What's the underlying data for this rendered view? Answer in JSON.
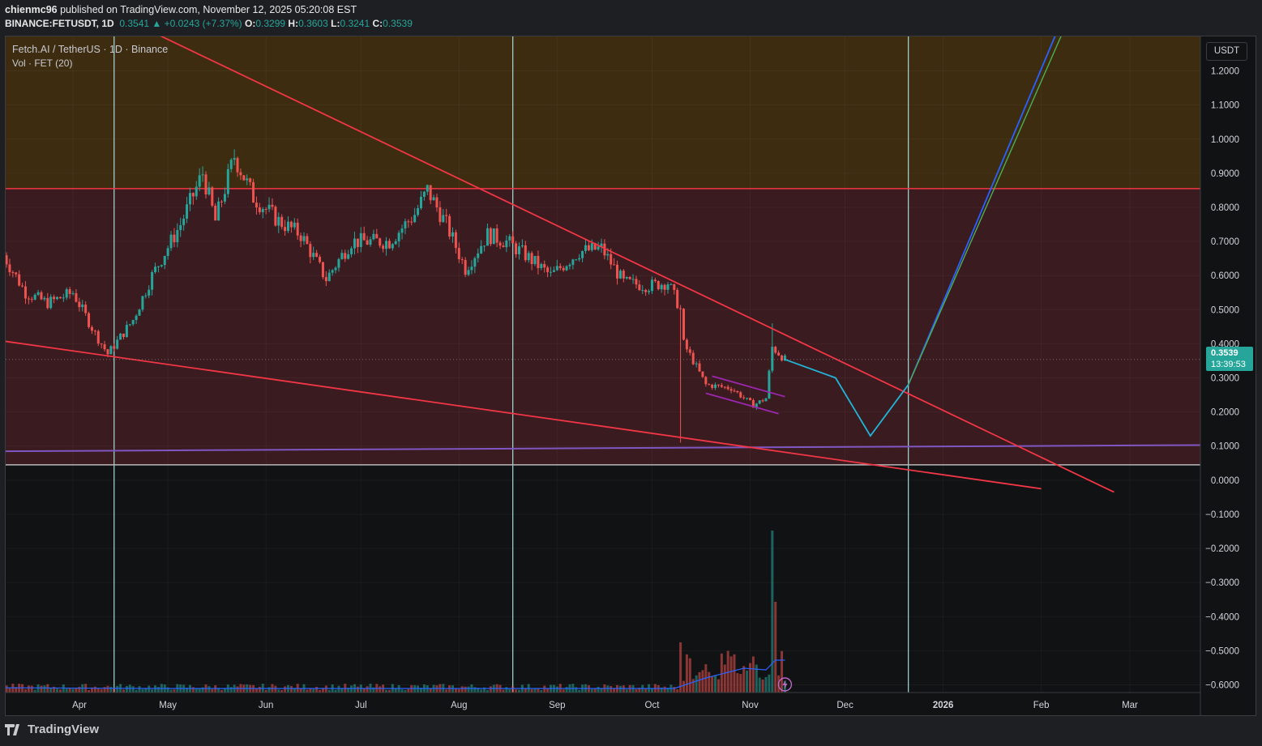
{
  "header": {
    "publisher": "chienmc96",
    "published_text": "published on TradingView.com, November 12, 2025 05:20:08 EST",
    "symbol": "BINANCE:FETUSDT, 1D",
    "last": "0.3541",
    "change": "▲ +0.0243 (+7.37%)",
    "o_label": "O:",
    "o_val": "0.3299",
    "h_label": "H:",
    "h_val": "0.3603",
    "l_label": "L:",
    "l_val": "0.3241",
    "c_label": "C:",
    "c_val": "0.3539"
  },
  "legend": {
    "title": "Fetch.AI / TetherUS · 1D · Binance",
    "volume": "Vol · FET (20)"
  },
  "currency_button": "USDT",
  "price_tag": {
    "price": "0.3539",
    "timer": "13:39:53"
  },
  "footer": {
    "brand": "TradingView"
  },
  "colors": {
    "up": "#26a69a",
    "down": "#ef5350",
    "resistance_zone": "#3d2c10",
    "range_zone": "#3a1b20",
    "trendline": "#f23645",
    "channel": "#9c27b0",
    "projection": "#22b5d8",
    "target_blue": "#2962ff",
    "target_green": "#4caf50"
  },
  "chart_data": {
    "type": "candlestick",
    "x_tick_labels": [
      "Apr",
      "May",
      "Jun",
      "Jul",
      "Aug",
      "Sep",
      "Oct",
      "Nov",
      "Dec",
      "2026",
      "Feb",
      "Mar"
    ],
    "y_tick_labels": [
      "1.2000",
      "1.1000",
      "1.0000",
      "0.9000",
      "0.8000",
      "0.7000",
      "0.6000",
      "0.5000",
      "0.4000",
      "0.3000",
      "0.2000",
      "0.1000",
      "0.0000",
      "−0.1000",
      "−0.2000",
      "−0.3000",
      "−0.4000",
      "−0.5000",
      "−0.6000"
    ],
    "ylim": [
      -0.67,
      1.32
    ],
    "price_path": [
      [
        "2025-03-10",
        0.66
      ],
      [
        "2025-03-17",
        0.55
      ],
      [
        "2025-03-24",
        0.52
      ],
      [
        "2025-04-01",
        0.55
      ],
      [
        "2025-04-08",
        0.43
      ],
      [
        "2025-04-12",
        0.37
      ],
      [
        "2025-04-20",
        0.47
      ],
      [
        "2025-04-26",
        0.6
      ],
      [
        "2025-05-05",
        0.75
      ],
      [
        "2025-05-12",
        0.9
      ],
      [
        "2025-05-16",
        0.76
      ],
      [
        "2025-05-22",
        0.95
      ],
      [
        "2025-05-28",
        0.83
      ],
      [
        "2025-06-05",
        0.76
      ],
      [
        "2025-06-12",
        0.72
      ],
      [
        "2025-06-20",
        0.59
      ],
      [
        "2025-06-28",
        0.7
      ],
      [
        "2025-07-10",
        0.7
      ],
      [
        "2025-07-18",
        0.78
      ],
      [
        "2025-07-22",
        0.85
      ],
      [
        "2025-07-28",
        0.75
      ],
      [
        "2025-08-03",
        0.62
      ],
      [
        "2025-08-10",
        0.72
      ],
      [
        "2025-08-16",
        0.7
      ],
      [
        "2025-08-22",
        0.66
      ],
      [
        "2025-08-30",
        0.6
      ],
      [
        "2025-09-08",
        0.67
      ],
      [
        "2025-09-15",
        0.68
      ],
      [
        "2025-09-22",
        0.58
      ],
      [
        "2025-09-30",
        0.57
      ],
      [
        "2025-10-06",
        0.58
      ],
      [
        "2025-10-10",
        0.5
      ],
      [
        "2025-10-11",
        0.4
      ],
      [
        "2025-10-14",
        0.35
      ],
      [
        "2025-10-18",
        0.28
      ],
      [
        "2025-10-26",
        0.27
      ],
      [
        "2025-11-02",
        0.22
      ],
      [
        "2025-11-06",
        0.24
      ],
      [
        "2025-11-08",
        0.39
      ],
      [
        "2025-11-12",
        0.354
      ]
    ],
    "horizontal_levels": [
      {
        "name": "resistance",
        "value": 0.855
      },
      {
        "name": "zero-line",
        "value": 0.045
      },
      {
        "name": "purple-support",
        "value": 0.09
      }
    ],
    "projection_path": [
      [
        "2025-11-12",
        0.354
      ],
      [
        "2025-11-28",
        0.3
      ],
      [
        "2025-12-09",
        0.13
      ],
      [
        "2025-12-21",
        0.28
      ]
    ],
    "volume_overlay": {
      "label": "Vol · FET (20)",
      "spike_date": "2025-11-08"
    },
    "grid": true,
    "legend_position": "top-left"
  }
}
